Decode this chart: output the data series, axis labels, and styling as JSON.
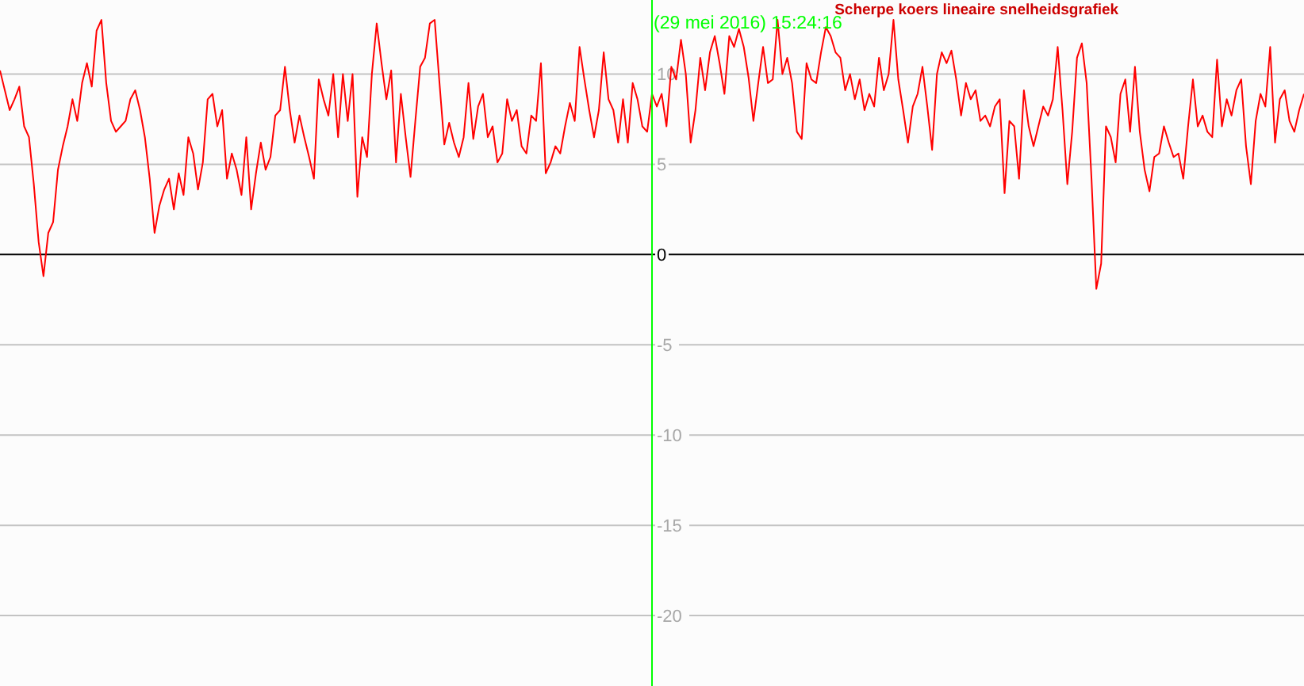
{
  "chart_data": {
    "type": "line",
    "title": "Scherpe koers lineaire snelheidsgrafiek",
    "categories": [
      null,
      null,
      null,
      null,
      null,
      null,
      null,
      null,
      null,
      null,
      null,
      null,
      null,
      null,
      null,
      null,
      null,
      null,
      null,
      null,
      null,
      null,
      null,
      null,
      null,
      null,
      null,
      null,
      null,
      null,
      null,
      null,
      null,
      null,
      null,
      null,
      null,
      null,
      null,
      null,
      null,
      null,
      null,
      null,
      null,
      null,
      null,
      null,
      null,
      null,
      null,
      null,
      null,
      null,
      null,
      null,
      null,
      null,
      null,
      null,
      null,
      null,
      null,
      null,
      null,
      null,
      null,
      null,
      null,
      null,
      null,
      null,
      null,
      null,
      null,
      null,
      null,
      null,
      null,
      null,
      null,
      null,
      null,
      null,
      null,
      null,
      null,
      null,
      null,
      null,
      null,
      null,
      null,
      null,
      null,
      null,
      null,
      null,
      null,
      null,
      null,
      null,
      null,
      null,
      null,
      null,
      null,
      null,
      null,
      null,
      null,
      null,
      null,
      null,
      null,
      null,
      null,
      null,
      null,
      null,
      null,
      null,
      null,
      null,
      null,
      null,
      null,
      null,
      null,
      null,
      null,
      null,
      null,
      null,
      null,
      null,
      null,
      null,
      null,
      null,
      null,
      null,
      null,
      null,
      null,
      null,
      null,
      null,
      null,
      null,
      null,
      null,
      null,
      null,
      null,
      null,
      null,
      null,
      null,
      null,
      null,
      null,
      null,
      null,
      null,
      null,
      null,
      null,
      null,
      null,
      null,
      null,
      null,
      null,
      null,
      null,
      null,
      null,
      null,
      null,
      null,
      null,
      null,
      null,
      null,
      null,
      null,
      null,
      null,
      null,
      null,
      null,
      null,
      null,
      null,
      null,
      null,
      null,
      null,
      null,
      null,
      null,
      null,
      null,
      null,
      null,
      null,
      null,
      null,
      null,
      null,
      null,
      null,
      null,
      null,
      null,
      null,
      null,
      null,
      null,
      null,
      null,
      null,
      null,
      null,
      null,
      null,
      null,
      null,
      null,
      null,
      null,
      null,
      null,
      null,
      null,
      null,
      null,
      null,
      null,
      null,
      null,
      null,
      null,
      null,
      null,
      null,
      null,
      null,
      null,
      null,
      null,
      null,
      null,
      null,
      null,
      null,
      null,
      null,
      null,
      null,
      null,
      null,
      null,
      null,
      null,
      null,
      null,
      null,
      null,
      null
    ],
    "series": [
      {
        "color": "#ff0000",
        "values": [
          10.2,
          9.1,
          8.0,
          8.6,
          9.3,
          7.1,
          6.5,
          3.9,
          0.7,
          -1.2,
          1.2,
          1.8,
          4.7,
          6.0,
          7.1,
          8.6,
          7.4,
          9.5,
          10.6,
          9.3,
          12.4,
          13.0,
          9.5,
          7.4,
          6.8,
          7.1,
          7.4,
          8.6,
          9.1,
          8.0,
          6.5,
          4.2,
          1.2,
          2.7,
          3.6,
          4.2,
          2.5,
          4.5,
          3.3,
          6.5,
          5.6,
          3.6,
          5.1,
          8.6,
          8.9,
          7.1,
          8.0,
          4.2,
          5.6,
          4.7,
          3.3,
          6.5,
          2.5,
          4.5,
          6.2,
          4.7,
          5.4,
          7.7,
          8.0,
          10.4,
          8.0,
          6.2,
          7.7,
          6.5,
          5.4,
          4.2,
          9.7,
          8.6,
          7.7,
          10.0,
          6.5,
          10.0,
          7.4,
          10.0,
          3.2,
          6.5,
          5.4,
          10.0,
          12.8,
          10.6,
          8.6,
          10.2,
          5.1,
          8.9,
          6.5,
          4.3,
          7.4,
          10.4,
          10.9,
          12.8,
          13.0,
          9.5,
          6.1,
          7.3,
          6.2,
          5.4,
          6.5,
          9.5,
          6.4,
          8.2,
          8.9,
          6.5,
          7.1,
          5.1,
          5.6,
          8.6,
          7.4,
          8.0,
          6.0,
          5.6,
          7.7,
          7.4,
          10.6,
          4.5,
          5.1,
          6.0,
          5.6,
          7.1,
          8.4,
          7.4,
          11.5,
          9.7,
          8.0,
          6.5,
          8.0,
          11.2,
          8.6,
          8.0,
          6.2,
          8.6,
          6.2,
          9.5,
          8.6,
          7.1,
          6.8,
          8.9,
          8.2,
          8.9,
          7.1,
          10.4,
          9.7,
          11.9,
          10.0,
          6.2,
          8.0,
          10.9,
          9.1,
          11.2,
          12.1,
          10.6,
          8.9,
          12.1,
          11.5,
          12.5,
          11.5,
          9.8,
          7.4,
          9.5,
          11.5,
          9.5,
          9.7,
          13.0,
          10.0,
          10.9,
          9.5,
          6.8,
          6.4,
          10.6,
          9.7,
          9.5,
          11.2,
          12.6,
          12.1,
          11.2,
          10.9,
          9.1,
          10.0,
          8.6,
          9.7,
          8.0,
          8.9,
          8.2,
          10.9,
          9.1,
          10.0,
          13.0,
          9.7,
          8.0,
          6.2,
          8.2,
          8.9,
          10.4,
          8.2,
          5.8,
          10.0,
          11.2,
          10.6,
          11.3,
          9.7,
          7.7,
          9.5,
          8.6,
          9.1,
          7.4,
          7.7,
          7.1,
          8.2,
          8.6,
          3.4,
          7.4,
          7.1,
          4.2,
          9.1,
          7.1,
          6.0,
          7.1,
          8.2,
          7.7,
          8.6,
          11.5,
          8.0,
          3.9,
          6.8,
          10.9,
          11.7,
          9.5,
          4.2,
          -1.9,
          -0.5,
          7.1,
          6.5,
          5.1,
          8.9,
          9.7,
          6.8,
          10.4,
          6.8,
          4.7,
          3.5,
          5.4,
          5.6,
          7.1,
          6.2,
          5.4,
          5.6,
          4.2,
          7.1,
          9.7,
          7.1,
          7.7,
          6.8,
          6.5,
          10.8,
          7.1,
          8.6,
          7.7,
          9.1,
          9.7,
          6.0,
          3.9,
          7.4,
          8.9,
          8.2,
          11.5,
          6.2,
          8.6,
          9.1,
          7.4,
          6.8,
          8.0,
          8.9
        ]
      }
    ],
    "ylim": [
      -23.9,
      14.1
    ],
    "yticks": [
      10,
      5,
      0,
      -5,
      -10,
      -15,
      -20
    ],
    "grid": "y",
    "line_style": "solid",
    "marker": "none",
    "annotations": [
      "(29 mei 2016) 15:24:16"
    ]
  }
}
